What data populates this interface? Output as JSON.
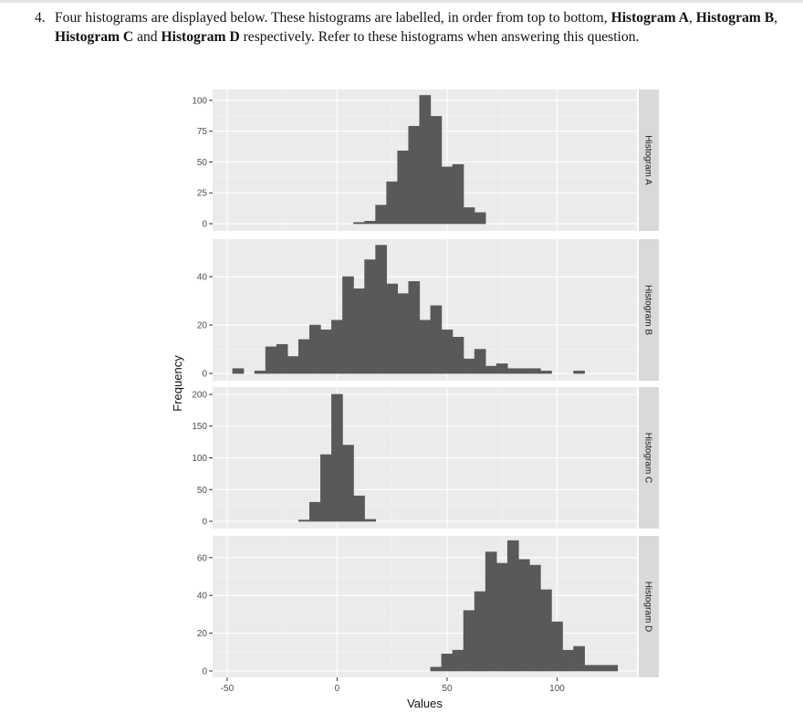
{
  "question": {
    "number": "4.",
    "segments": [
      {
        "text": "Four histograms are displayed below. These histograms are labelled, in order from top to bottom,",
        "bold": false
      },
      {
        "text": "Histogram A",
        "bold": true
      },
      {
        "text": ",",
        "bold": false
      },
      {
        "text": "Histogram B",
        "bold": true
      },
      {
        "text": ",",
        "bold": false
      },
      {
        "text": "Histogram C",
        "bold": true
      },
      {
        "text": "and",
        "bold": false
      },
      {
        "text": "Histogram D",
        "bold": true
      },
      {
        "text": "respectively. Refer to these histograms when answering this question.",
        "bold": false
      }
    ]
  },
  "axis_titles": {
    "x": "Values",
    "y": "Frequency"
  },
  "chart_data": [
    {
      "type": "histogram",
      "title": "Histogram A",
      "bins": [
        -47.5,
        -42.5,
        -37.5,
        -32.5,
        -27.5,
        -22.5,
        -17.5,
        -12.5,
        -7.5,
        -2.5,
        2.5,
        7.5,
        12.5,
        17.5,
        22.5,
        27.5,
        32.5,
        37.5,
        42.5,
        47.5,
        52.5,
        57.5,
        62.5,
        67.5,
        72.5,
        77.5,
        82.5,
        87.5,
        92.5,
        97.5,
        102.5,
        107.5,
        112.5,
        117.5,
        122.5,
        127.5
      ],
      "values": [
        0,
        0,
        0,
        0,
        0,
        0,
        0,
        0,
        0,
        0,
        0,
        1,
        2,
        15,
        34,
        59,
        79,
        104,
        87,
        46,
        48,
        13,
        9,
        0,
        0,
        0,
        0,
        0,
        0,
        0,
        0,
        0,
        0,
        0,
        0
      ],
      "color": "#595959",
      "xlim": [
        -56.6,
        136.3
      ],
      "xticks": [
        -50,
        0,
        50,
        100
      ],
      "ylim": [
        -5.9,
        108.8
      ],
      "yticks": [
        0,
        25,
        50,
        75,
        100
      ],
      "grid": true
    },
    {
      "type": "histogram",
      "title": "Histogram B",
      "bins": [
        -47.5,
        -42.5,
        -37.5,
        -32.5,
        -27.5,
        -22.5,
        -17.5,
        -12.5,
        -7.5,
        -2.5,
        2.5,
        7.5,
        12.5,
        17.5,
        22.5,
        27.5,
        32.5,
        37.5,
        42.5,
        47.5,
        52.5,
        57.5,
        62.5,
        67.5,
        72.5,
        77.5,
        82.5,
        87.5,
        92.5,
        97.5,
        102.5,
        107.5,
        112.5,
        117.5,
        122.5,
        127.5
      ],
      "values": [
        2,
        0,
        1,
        11,
        12,
        7,
        14,
        20,
        18,
        22,
        40,
        35,
        47,
        53,
        37,
        33,
        38,
        22,
        28,
        18,
        15,
        6,
        10,
        3,
        4,
        2,
        2,
        2,
        1,
        0,
        0,
        1,
        0,
        0,
        0
      ],
      "color": "#595959",
      "xlim": [
        -56.6,
        136.3
      ],
      "xticks": [
        -50,
        0,
        50,
        100
      ],
      "ylim": [
        -3,
        55.5
      ],
      "yticks": [
        0,
        20,
        40
      ],
      "grid": true
    },
    {
      "type": "histogram",
      "title": "Histogram C",
      "bins": [
        -47.5,
        -42.5,
        -37.5,
        -32.5,
        -27.5,
        -22.5,
        -17.5,
        -12.5,
        -7.5,
        -2.5,
        2.5,
        7.5,
        12.5,
        17.5,
        22.5,
        27.5,
        32.5,
        37.5,
        42.5,
        47.5,
        52.5,
        57.5,
        62.5,
        67.5,
        72.5,
        77.5,
        82.5,
        87.5,
        92.5,
        97.5,
        102.5,
        107.5,
        112.5,
        117.5,
        122.5,
        127.5
      ],
      "values": [
        0,
        0,
        0,
        0,
        0,
        0,
        2,
        30,
        105,
        200,
        120,
        40,
        3,
        0,
        0,
        0,
        0,
        0,
        0,
        0,
        0,
        0,
        0,
        0,
        0,
        0,
        0,
        0,
        0,
        0,
        0,
        0,
        0,
        0,
        0
      ],
      "color": "#595959",
      "xlim": [
        -56.6,
        136.3
      ],
      "xticks": [
        -50,
        0,
        50,
        100
      ],
      "ylim": [
        -11.5,
        211.5
      ],
      "yticks": [
        0,
        50,
        100,
        150,
        200
      ],
      "grid": true
    },
    {
      "type": "histogram",
      "title": "Histogram D",
      "bins": [
        -47.5,
        -42.5,
        -37.5,
        -32.5,
        -27.5,
        -22.5,
        -17.5,
        -12.5,
        -7.5,
        -2.5,
        2.5,
        7.5,
        12.5,
        17.5,
        22.5,
        27.5,
        32.5,
        37.5,
        42.5,
        47.5,
        52.5,
        57.5,
        62.5,
        67.5,
        72.5,
        77.5,
        82.5,
        87.5,
        92.5,
        97.5,
        102.5,
        107.5,
        112.5,
        117.5,
        122.5,
        127.5
      ],
      "values": [
        0,
        0,
        0,
        0,
        0,
        0,
        0,
        0,
        0,
        0,
        0,
        0,
        0,
        0,
        0,
        0,
        0,
        0,
        2,
        9,
        11,
        32,
        42,
        63,
        57,
        69,
        59,
        56,
        43,
        26,
        11,
        13,
        3,
        3,
        3
      ],
      "color": "#595959",
      "xlim": [
        -56.6,
        136.3
      ],
      "xticks": [
        -50,
        0,
        50,
        100
      ],
      "ylim": [
        -3.4,
        71.5
      ],
      "yticks": [
        0,
        20,
        40,
        60
      ],
      "grid": true
    }
  ]
}
